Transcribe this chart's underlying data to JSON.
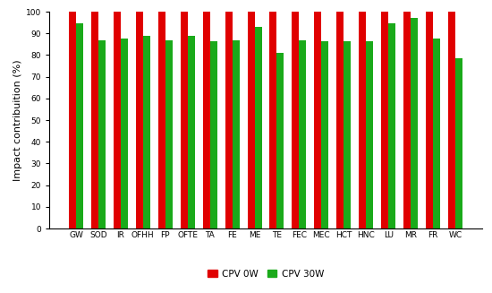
{
  "categories": [
    "GW",
    "SOD",
    "IR",
    "OFHH",
    "FP",
    "OFTE",
    "TA",
    "FE",
    "ME",
    "TE",
    "FEC",
    "MEC",
    "HCT",
    "HNC",
    "LU",
    "MR",
    "FR",
    "WC"
  ],
  "cpv0w": [
    100,
    100,
    100,
    100,
    100,
    100,
    100,
    100,
    100,
    100,
    100,
    100,
    100,
    100,
    100,
    100,
    100,
    100
  ],
  "cpv30w": [
    94.5,
    87.0,
    87.5,
    89.0,
    87.0,
    89.0,
    86.5,
    87.0,
    93.0,
    81.0,
    87.0,
    86.5,
    86.5,
    86.5,
    94.5,
    97.0,
    87.5,
    78.5
  ],
  "color_red": "#e00000",
  "color_green": "#1aaa1a",
  "ylabel": "Impact contribuition (%)",
  "ylim": [
    0,
    100
  ],
  "yticks": [
    0,
    10,
    20,
    30,
    40,
    50,
    60,
    70,
    80,
    90,
    100
  ],
  "legend_cpv0w": "CPV 0W",
  "legend_cpv30w": "CPV 30W",
  "bar_width": 0.32,
  "tick_fontsize": 6.5,
  "ylabel_fontsize": 8,
  "legend_fontsize": 7.5,
  "bg_color": "#ffffff"
}
